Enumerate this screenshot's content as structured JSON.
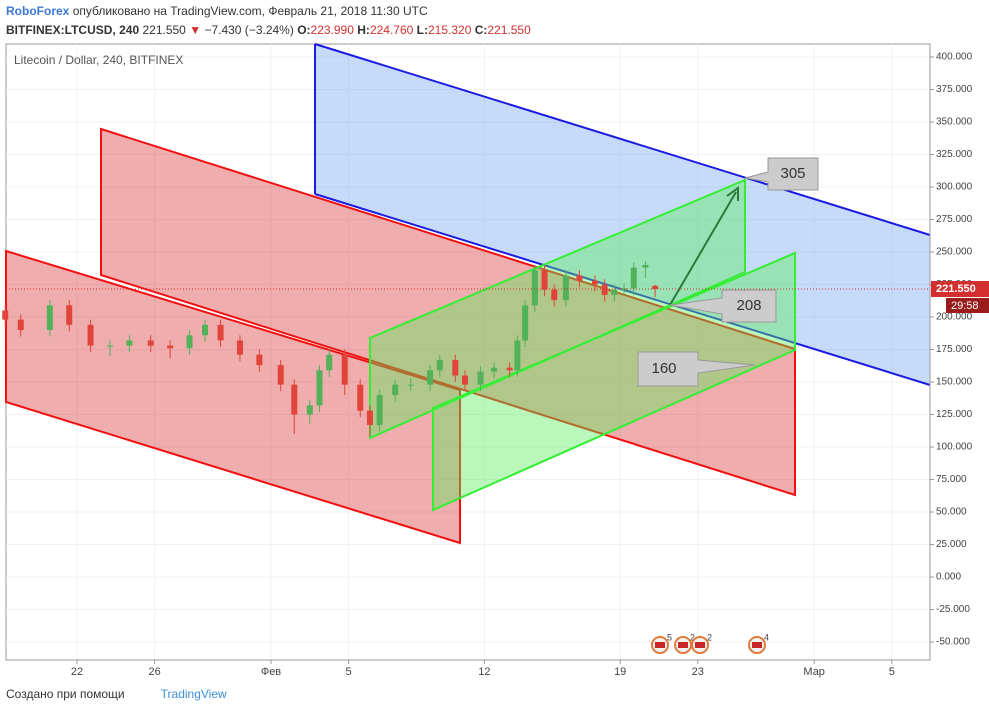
{
  "header": {
    "brand": "RoboForex",
    "published": "опубликовано на TradingView.com, Февраль 21, 2018 11:30 UTC",
    "symbol": "BITFINEX:LTCUSD, 240",
    "last": "221.550",
    "arrow": "▼",
    "change": "−7.430 (−3.24%)",
    "o_label": "O:",
    "o": "223.990",
    "h_label": "H:",
    "h": "224.760",
    "l_label": "L:",
    "l": "215.320",
    "c_label": "C:",
    "c": "221.550"
  },
  "footer": {
    "made_with": "Создано при помощи",
    "logo": "TradingView"
  },
  "chart_data": {
    "type": "candlestick",
    "title": "Litecoin / Dollar, 240, BITFINEX",
    "up_color": "#53b15a",
    "down_color": "#e0443a",
    "x": [
      18.3,
      19.1,
      20.6,
      21.6,
      22.7,
      23.7,
      24.7,
      25.8,
      26.8,
      27.8,
      28.6,
      29.4,
      30.4,
      31.4,
      32.5,
      33.2,
      34.0,
      34.5,
      35.0,
      35.8,
      36.6,
      37.1,
      37.6,
      38.4,
      39.2,
      40.2,
      40.7,
      41.5,
      42.0,
      42.8,
      43.5,
      44.3,
      44.7,
      45.1,
      45.6,
      46.1,
      46.6,
      47.2,
      47.9,
      48.7,
      49.2,
      49.7,
      50.2,
      50.7,
      51.3,
      51.8
    ],
    "open": [
      205,
      198,
      190,
      209,
      194,
      178,
      178,
      182,
      178,
      176,
      186,
      194,
      182,
      171,
      163,
      148,
      125,
      132,
      159,
      171,
      148,
      128,
      117,
      140,
      148,
      148,
      159,
      167,
      155,
      148,
      158,
      161,
      159,
      182,
      209,
      236,
      221,
      213,
      232,
      228,
      225,
      217,
      221,
      222,
      238,
      223.99
    ],
    "high": [
      209,
      202,
      213,
      213,
      198,
      182,
      186,
      186,
      182,
      190,
      198,
      198,
      186,
      175,
      167,
      152,
      136,
      163,
      175,
      175,
      152,
      132,
      144,
      152,
      153,
      163,
      171,
      171,
      159,
      162,
      165,
      165,
      186,
      213,
      240,
      240,
      225,
      236,
      236,
      232,
      229,
      225,
      226,
      242,
      243,
      224.76
    ],
    "low": [
      193,
      185,
      185,
      189,
      173,
      170,
      173,
      173,
      168,
      171,
      181,
      177,
      166,
      158,
      143,
      110,
      118,
      127,
      154,
      140,
      123,
      108,
      112,
      135,
      143,
      143,
      154,
      150,
      143,
      143,
      153,
      154,
      154,
      177,
      204,
      216,
      208,
      208,
      223,
      220,
      212,
      212,
      216,
      217,
      230,
      215.32
    ],
    "close": [
      198,
      190,
      209,
      194,
      178,
      178,
      182,
      178,
      176,
      186,
      194,
      182,
      171,
      163,
      148,
      125,
      132,
      159,
      171,
      148,
      128,
      117,
      140,
      148,
      148,
      159,
      167,
      155,
      148,
      158,
      161,
      159,
      182,
      209,
      236,
      221,
      213,
      232,
      228,
      225,
      217,
      221,
      222,
      238,
      240,
      221.55
    ],
    "xlim": [
      18.34,
      65.97
    ],
    "ylim": [
      -63.8,
      410
    ],
    "xticks": [
      22,
      26,
      {
        "value": 32,
        "label": "Фев"
      },
      {
        "value": 36,
        "label": "5"
      },
      {
        "value": 43,
        "label": "12"
      },
      {
        "value": 50,
        "label": "19"
      },
      {
        "value": 54,
        "label": "23"
      },
      {
        "value": 60,
        "label": "Мар"
      },
      {
        "value": 64,
        "label": "5"
      }
    ],
    "yticks": [
      {
        "value": 400,
        "label": "400.000"
      },
      {
        "value": 375,
        "label": "375.000"
      },
      {
        "value": 350,
        "label": "350.000"
      },
      {
        "value": 325,
        "label": "325.000"
      },
      {
        "value": 300,
        "label": "300.000"
      },
      {
        "value": 275,
        "label": "275.000"
      },
      {
        "value": 250,
        "label": "250.000"
      },
      {
        "value": 225,
        "label": "225.000"
      },
      {
        "value": 200,
        "label": "200.000"
      },
      {
        "value": 175,
        "label": "175.000"
      },
      {
        "value": 150,
        "label": "150.000"
      },
      {
        "value": 125,
        "label": "125.000"
      },
      {
        "value": 100,
        "label": "100.000"
      },
      {
        "value": 75,
        "label": "75.000"
      },
      {
        "value": 50,
        "label": "50.000"
      },
      {
        "value": 25,
        "label": "25.000"
      },
      {
        "value": 0,
        "label": "0.000"
      },
      {
        "value": -25,
        "label": "-25.000"
      },
      {
        "value": -50,
        "label": "-50.000"
      }
    ],
    "grid": true,
    "last_price": {
      "value": 221.55,
      "label": "221.550",
      "countdown": "29:58"
    },
    "annotations": [
      "305",
      "208",
      "160"
    ],
    "events": [
      "5",
      "2",
      "2",
      "4"
    ]
  }
}
